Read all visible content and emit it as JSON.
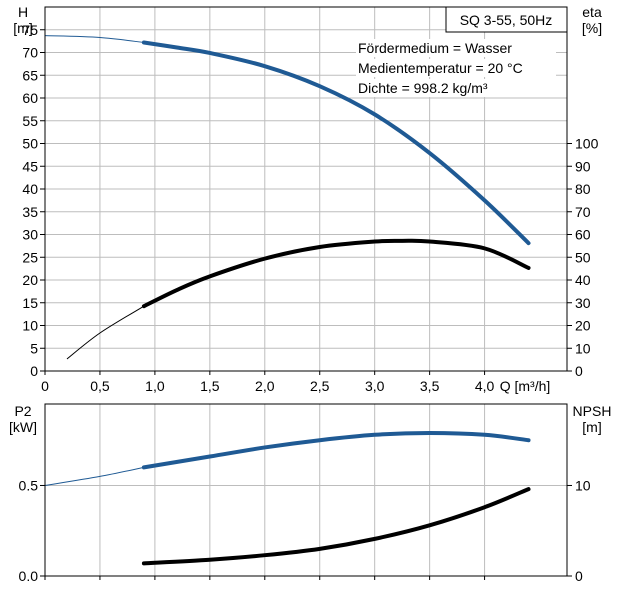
{
  "colors": {
    "blue": "#1f5a94",
    "black": "#000000",
    "grid": "#bdbdbd",
    "frame": "#000000",
    "background": "#ffffff"
  },
  "chart_data": [
    {
      "type": "line",
      "panel": "top",
      "title": "",
      "badge": "SQ 3-55, 50Hz",
      "info_lines": [
        "Fördermedium = Wasser",
        "Medientemperatur = 20 °C",
        "Dichte = 998.2 kg/m³"
      ],
      "xlabel": "Q [m³/h]",
      "xlim": [
        0,
        4.75
      ],
      "xticks": [
        0,
        0.5,
        1.0,
        1.5,
        2.0,
        2.5,
        3.0,
        3.5,
        4.0
      ],
      "xtick_labels": [
        "0",
        "0,5",
        "1,0",
        "1,5",
        "2,0",
        "2,5",
        "3,0",
        "3,5",
        "4,0"
      ],
      "y_left": {
        "label": "H",
        "unit": "[m]",
        "lim": [
          0,
          80
        ],
        "ticks": [
          0,
          5,
          10,
          15,
          20,
          25,
          30,
          35,
          40,
          45,
          50,
          55,
          60,
          65,
          70,
          75
        ]
      },
      "y_right": {
        "label": "eta",
        "unit": "[%]",
        "lim": [
          0,
          160
        ],
        "ticks": [
          0,
          10,
          20,
          30,
          40,
          50,
          60,
          70,
          80,
          90,
          100
        ]
      },
      "grid": true,
      "series": [
        {
          "axis": "left",
          "color": "blue",
          "thin_x": [
            0,
            0.9
          ],
          "thick_x": [
            0.9,
            4.4
          ],
          "x": [
            0,
            0.5,
            0.9,
            1.2,
            1.5,
            2.0,
            2.5,
            3.0,
            3.5,
            4.0,
            4.4
          ],
          "y": [
            73.7,
            73.3,
            72.2,
            71.1,
            69.9,
            67.0,
            62.6,
            56.4,
            47.9,
            37.5,
            28.1
          ]
        },
        {
          "axis": "right",
          "color": "black",
          "thin_x": [
            0.2,
            0.9
          ],
          "thick_x": [
            0.9,
            4.4
          ],
          "x": [
            0.2,
            0.5,
            0.9,
            1.2,
            1.5,
            2.0,
            2.5,
            3.0,
            3.25,
            3.5,
            4.0,
            4.4
          ],
          "y": [
            5.3,
            16.7,
            28.5,
            35.6,
            41.6,
            49.4,
            54.5,
            56.9,
            57.2,
            56.9,
            53.9,
            45.3
          ]
        }
      ]
    },
    {
      "type": "line",
      "panel": "bottom",
      "title": "",
      "xlim": [
        0,
        4.75
      ],
      "xticks": [
        0,
        0.5,
        1.0,
        1.5,
        2.0,
        2.5,
        3.0,
        3.5,
        4.0
      ],
      "y_left": {
        "label": "P2",
        "unit": "[kW]",
        "lim": [
          0,
          0.95
        ],
        "ticks": [
          0,
          0.5
        ],
        "tick_labels": [
          "0.0",
          "0.5"
        ]
      },
      "y_right": {
        "label": "NPSH",
        "unit": "[m]",
        "lim": [
          0,
          19
        ],
        "ticks": [
          0,
          10
        ],
        "tick_labels": [
          "0",
          "10"
        ]
      },
      "grid": true,
      "series": [
        {
          "axis": "left",
          "color": "blue",
          "thin_x": [
            0,
            0.9
          ],
          "thick_x": [
            0.9,
            4.4
          ],
          "x": [
            0,
            0.5,
            0.9,
            1.5,
            2.0,
            2.5,
            3.0,
            3.5,
            4.0,
            4.4
          ],
          "y": [
            0.5,
            0.55,
            0.6,
            0.66,
            0.71,
            0.75,
            0.78,
            0.79,
            0.78,
            0.75
          ]
        },
        {
          "axis": "right",
          "color": "black",
          "thin_x": [
            0.9,
            0.9
          ],
          "thick_x": [
            0.9,
            4.4
          ],
          "x": [
            0.9,
            1.5,
            2.0,
            2.5,
            3.0,
            3.5,
            4.0,
            4.4
          ],
          "y": [
            1.4,
            1.8,
            2.3,
            3.0,
            4.1,
            5.6,
            7.6,
            9.6
          ]
        }
      ]
    }
  ]
}
